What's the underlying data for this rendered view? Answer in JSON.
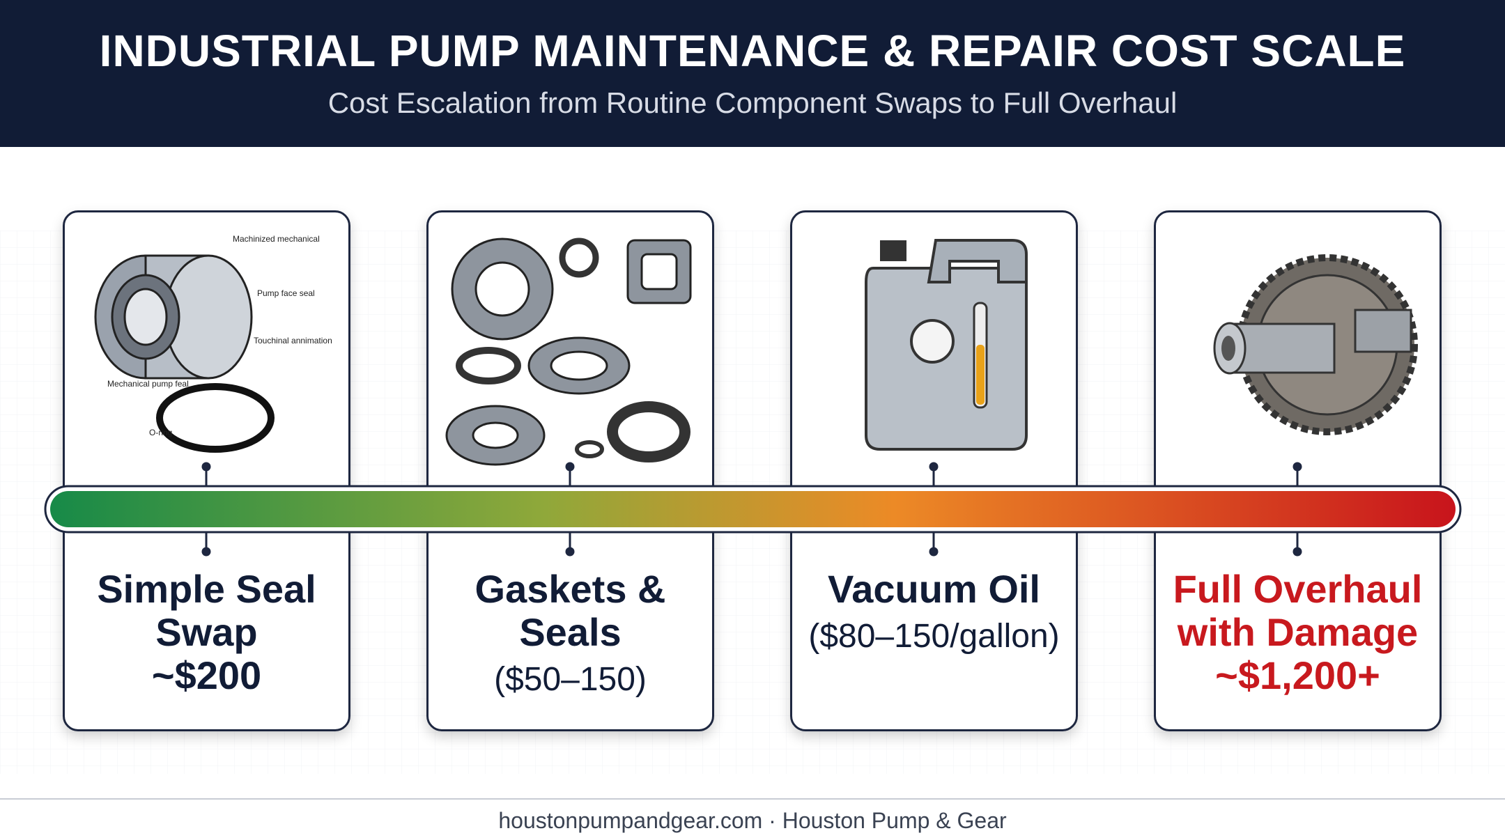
{
  "header": {
    "title": "INDUSTRIAL PUMP MAINTENANCE & REPAIR COST SCALE",
    "subtitle": "Cost Escalation from Routine Component Swaps to Full Overhaul"
  },
  "cards": [
    {
      "title": "Simple Seal Swap",
      "cost": "~$200",
      "annotations": [
        "Machinized mechanical",
        "Pump face seal",
        "Touchinal annimation",
        "Mechanical pump feal",
        "O-ring"
      ]
    },
    {
      "title": "Gaskets & Seals",
      "cost": "($50–150)"
    },
    {
      "title": "Vacuum Oil",
      "cost": "($80–150/gallon)"
    },
    {
      "title": "Full Overhaul with Damage",
      "cost": "~$1,200+"
    }
  ],
  "footer": "houstonpumpandgear.com · Houston Pump & Gear"
}
